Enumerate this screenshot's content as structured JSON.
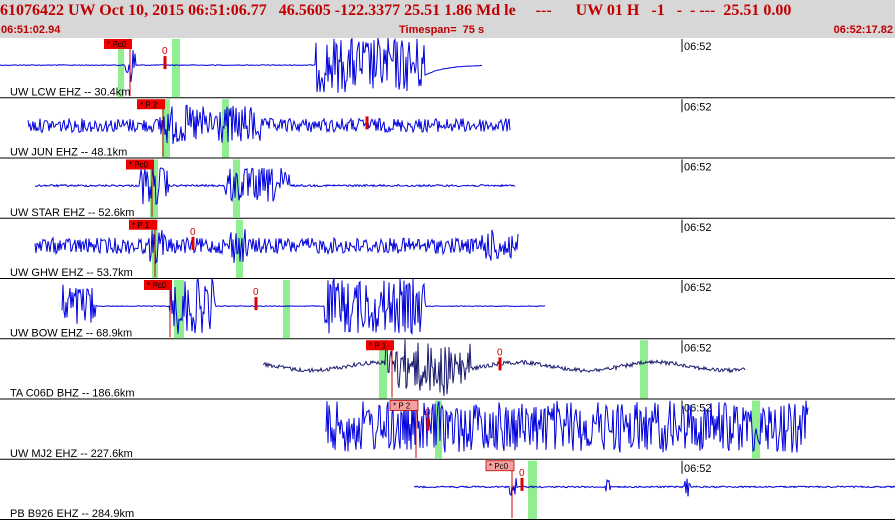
{
  "header": {
    "title": "61076422 UW Oct 10, 2015 06:51:06.77   46.5605 -122.3377 25.51 1.86 Md le     ---      UW 01 H   -1   -  - ---  25.51 0.00",
    "start_time": "06:51:02.94",
    "timespan": "Timespan=  75 s",
    "end_time": "06:52:17.82"
  },
  "time_mark": "06:52",
  "colors": {
    "header_bg": "#d7d7d7",
    "header_text": "#c00000",
    "trace": "#0000dd",
    "trace_dark": "#1a1a70",
    "pick_box": "#ee0000",
    "pick_box_light": "#f4a0a0",
    "green_band": "#90ee90",
    "marker": "#dd0000"
  },
  "traces": [
    {
      "label": "UW LCW EHZ -- 30.4km",
      "pick": "* Pc0",
      "pick_style": "solid",
      "color": "trace",
      "zero": "0"
    },
    {
      "label": "UW JUN EHZ -- 48.1km",
      "pick": "* P 2",
      "pick_style": "solid",
      "color": "trace",
      "zero": ""
    },
    {
      "label": "UW STAR EHZ -- 52.6km",
      "pick": "* Pc0",
      "pick_style": "solid",
      "color": "trace",
      "zero": ""
    },
    {
      "label": "UW GHW EHZ -- 53.7km",
      "pick": "* P 1",
      "pick_style": "solid",
      "color": "trace",
      "zero": "0"
    },
    {
      "label": "UW BOW EHZ -- 68.9km",
      "pick": "* Pc0",
      "pick_style": "solid",
      "color": "trace",
      "zero": "0"
    },
    {
      "label": "TA C06D BHZ -- 186.6km",
      "pick": "* P 1",
      "pick_style": "solid",
      "color": "trace_dark",
      "zero": "0"
    },
    {
      "label": "UW MJ2 EHZ -- 227.6km",
      "pick": "* P 2",
      "pick_style": "light",
      "color": "trace",
      "zero": "0"
    },
    {
      "label": "PB B926 EHZ -- 284.9km",
      "pick": "* Pc0",
      "pick_style": "light",
      "color": "trace",
      "zero": "0"
    }
  ]
}
